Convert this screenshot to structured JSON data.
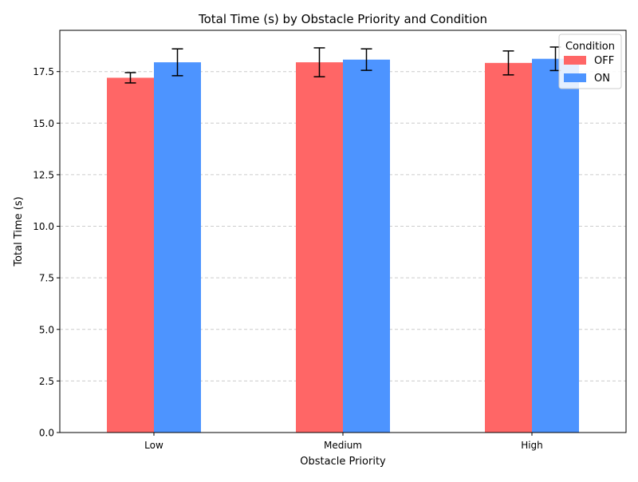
{
  "chart_data": {
    "type": "bar",
    "title": "Total Time (s) by Obstacle Priority and Condition",
    "xlabel": "Obstacle Priority",
    "ylabel": "Total Time (s)",
    "categories": [
      "Low",
      "Medium",
      "High"
    ],
    "ylim": [
      0,
      19.5
    ],
    "yticks": [
      "0.0",
      "2.5",
      "5.0",
      "7.5",
      "10.0",
      "12.5",
      "15.0",
      "17.5"
    ],
    "grid": true,
    "legend": {
      "title": "Condition",
      "placement": "top-right"
    },
    "series": [
      {
        "name": "OFF",
        "color": "#ff6666",
        "values": [
          17.2,
          17.95,
          17.92
        ],
        "errors": [
          0.25,
          0.7,
          0.58
        ]
      },
      {
        "name": "ON",
        "color": "#4d94ff",
        "values": [
          17.95,
          18.08,
          18.12
        ],
        "errors": [
          0.65,
          0.52,
          0.57
        ]
      }
    ]
  }
}
